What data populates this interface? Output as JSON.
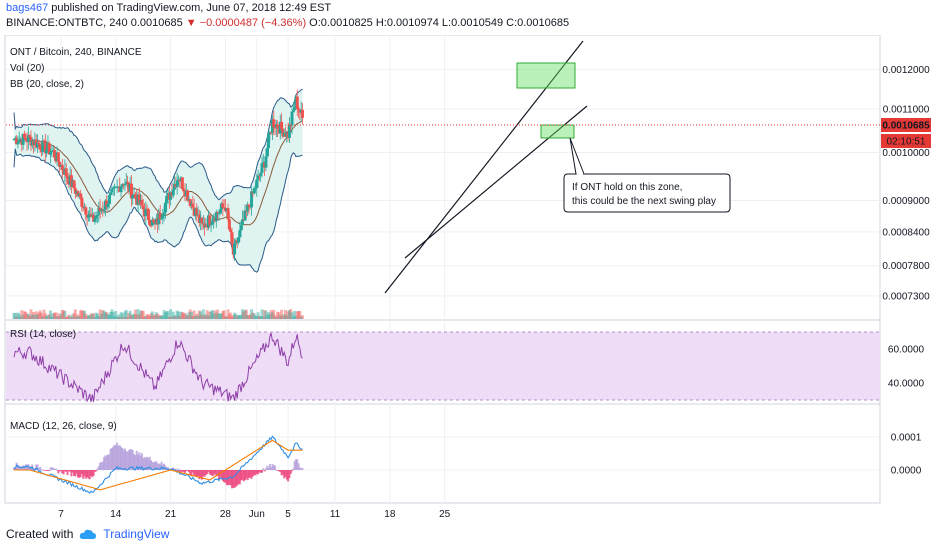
{
  "header": {
    "author": "bags467",
    "published_text": " published on TradingView.com, June 07, 2018 12:49 EST",
    "symbol_line": "BINANCE:ONTBTC, 240  0.0010685 ",
    "change_arrow": "▼",
    "change_text": " −0.0000487 (−4.36%)",
    "ohlc_text": " O:0.0010825 H:0.0010974 L:0.0010549 C:0.0010685"
  },
  "legend": {
    "pair": "ONT / Bitcoin, 240, BINANCE",
    "vol": "Vol (20)",
    "bb": "BB (20, close, 2)",
    "rsi": "RSI (14, close)",
    "macd": "MACD (12, 26, close, 9)"
  },
  "annotation": {
    "line1": "If ONT hold on this zone,",
    "line2": "this could be the next swing play"
  },
  "price_badges": {
    "last": "0.0010685",
    "countdown": "02:10:51"
  },
  "footer": {
    "created_with": "Created with",
    "brand": "TradingView"
  },
  "colors": {
    "bull": "#26a69a",
    "bear": "#ef5350",
    "bb_band": "#2a5b8a",
    "bb_fill": "#dff3f0",
    "bb_basis": "#8a5a3a",
    "rsi_line": "#8e3fa8",
    "rsi_fill": "#efdcf7",
    "macd_line": "#2f8fe6",
    "signal_line": "#f57c00",
    "zone_fill": "#66dd66",
    "last_price": "#e53935"
  },
  "chart_data": [
    {
      "type": "candlestick",
      "title": "ONT / Bitcoin, 240, BINANCE",
      "x_ticks": [
        "7",
        "14",
        "21",
        "28",
        "Jun",
        "5",
        "11",
        "18",
        "25"
      ],
      "y_ticks": [
        0.0012,
        0.0011,
        0.001,
        0.0009,
        0.00084,
        0.00078,
        0.00073
      ],
      "y_scale": "log",
      "ylim": [
        0.0007,
        0.00128
      ],
      "ohlc_keypoints_close": [
        {
          "t": "May 3",
          "close": 0.00103
        },
        {
          "t": "May 6",
          "close": 0.001
        },
        {
          "t": "May 11",
          "close": 0.00086
        },
        {
          "t": "May 15",
          "close": 0.00094
        },
        {
          "t": "May 19",
          "close": 0.00085
        },
        {
          "t": "May 22",
          "close": 0.00095
        },
        {
          "t": "May 25",
          "close": 0.00085
        },
        {
          "t": "May 28",
          "close": 0.00089
        },
        {
          "t": "May 29",
          "close": 0.0008
        },
        {
          "t": "Jun 2",
          "close": 0.00098
        },
        {
          "t": "Jun 3",
          "close": 0.00107
        },
        {
          "t": "Jun 5",
          "close": 0.00104
        },
        {
          "t": "Jun 6",
          "close": 0.00112
        },
        {
          "t": "Jun 7",
          "close": 0.0010685
        }
      ],
      "last_price": 0.0010685
    },
    {
      "type": "line",
      "title": "RSI (14, close)",
      "y_ticks": [
        60,
        40
      ],
      "band": [
        70,
        30
      ],
      "values_keypoints": [
        {
          "t": "May 3",
          "value": 58
        },
        {
          "t": "May 11",
          "value": 30
        },
        {
          "t": "May 15",
          "value": 63
        },
        {
          "t": "May 19",
          "value": 37
        },
        {
          "t": "May 22",
          "value": 65
        },
        {
          "t": "May 25",
          "value": 40
        },
        {
          "t": "May 29",
          "value": 31
        },
        {
          "t": "Jun 3",
          "value": 68
        },
        {
          "t": "Jun 5",
          "value": 52
        },
        {
          "t": "Jun 6",
          "value": 68
        },
        {
          "t": "Jun 7",
          "value": 55
        }
      ]
    },
    {
      "type": "line",
      "title": "MACD (12, 26, close, 9)",
      "y_ticks": [
        0.0001,
        0.0
      ],
      "series": [
        {
          "name": "MACD",
          "values_keypoints": [
            {
              "t": "May 3",
              "value": 1e-05
            },
            {
              "t": "May 11",
              "value": -7e-05
            },
            {
              "t": "May 14",
              "value": 5e-06
            },
            {
              "t": "May 21",
              "value": 5e-06
            },
            {
              "t": "May 25",
              "value": -4e-05
            },
            {
              "t": "May 29",
              "value": -2e-05
            },
            {
              "t": "Jun 3",
              "value": 0.0001
            },
            {
              "t": "Jun 5",
              "value": 4e-05
            },
            {
              "t": "Jun 6",
              "value": 8e-05
            },
            {
              "t": "Jun 7",
              "value": 6e-05
            }
          ]
        },
        {
          "name": "Signal",
          "values_keypoints": [
            {
              "t": "May 3",
              "value": 0.0
            },
            {
              "t": "May 12",
              "value": -6e-05
            },
            {
              "t": "May 21",
              "value": 0.0
            },
            {
              "t": "May 26",
              "value": -3e-05
            },
            {
              "t": "Jun 3",
              "value": 9e-05
            },
            {
              "t": "Jun 5",
              "value": 6e-05
            },
            {
              "t": "Jun 7",
              "value": 6e-05
            }
          ]
        }
      ]
    }
  ]
}
